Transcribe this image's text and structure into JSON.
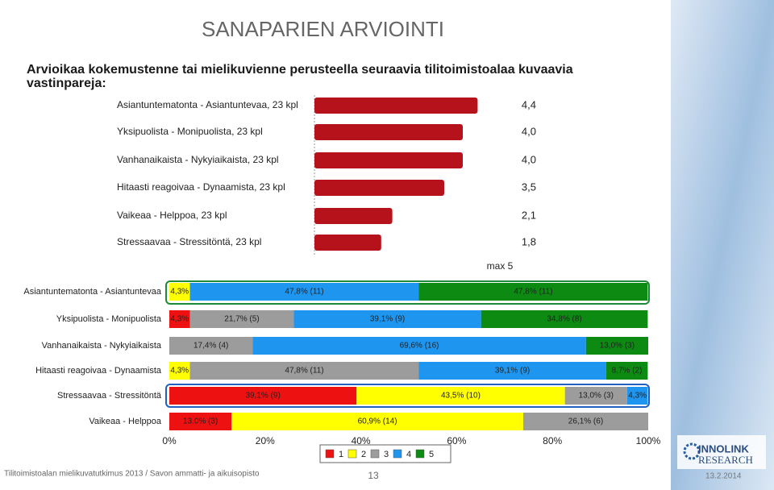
{
  "title": "SANAPARIEN ARVIOINTI",
  "question": "Arvioikaa kokemustenne tai mielikuvienne perusteella seuraavia tilitoimistoalaa kuvaavia vastinpareja:",
  "footer": "Tilitoimistoalan mielikuvatutkimus 2013 / Savon ammatti- ja aikuisopisto",
  "page_number": "13",
  "date": "13.2.2014",
  "logo": {
    "line1": "INNOLINK",
    "line2": "RESEARCH"
  },
  "chart_data": [
    {
      "type": "hbar",
      "categories": [
        "Asiantuntematonta - Asiantuntevaa, 23 kpl",
        "Yksipuolista - Monipuolista, 23 kpl",
        "Vanhanaikaista - Nykyiaikaista, 23 kpl",
        "Hitaasti reagoivaa - Dynaamista, 23 kpl",
        "Vaikeaa - Helppoa, 23 kpl",
        "Stressaavaa - Stressitöntä, 23 kpl"
      ],
      "values": [
        4.4,
        4.0,
        4.0,
        3.5,
        2.1,
        1.8
      ],
      "value_labels": [
        "4,4",
        "4,0",
        "4,0",
        "3,5",
        "2,1",
        "1,8"
      ],
      "color": "#b5121b",
      "xlim": [
        0,
        5
      ],
      "annotation": "max 5"
    },
    {
      "type": "stacked_hbar",
      "categories": [
        "Asiantuntematonta - Asiantuntevaa",
        "Yksipuolista - Monipuolista",
        "Vanhanaikaista - Nykyiaikaista",
        "Hitaasti reagoivaa - Dynaamista",
        "Stressaavaa - Stressitöntä",
        "Vaikeaa - Helppoa"
      ],
      "series": [
        {
          "name": "1",
          "color": "#ee1111",
          "values": [
            null,
            4.3,
            null,
            null,
            39.1,
            13.0
          ],
          "value_labels": [
            null,
            "4,3%",
            null,
            null,
            "39,1% (9)",
            "13,0% (3)"
          ]
        },
        {
          "name": "2",
          "color": "#ffff00",
          "values": [
            4.3,
            null,
            null,
            4.3,
            43.5,
            60.9
          ],
          "value_labels": [
            "4,3%",
            null,
            null,
            "4,3%",
            "43,5% (10)",
            "60,9% (14)"
          ]
        },
        {
          "name": "3",
          "color": "#9c9c9c",
          "values": [
            null,
            21.7,
            17.4,
            47.8,
            13.0,
            26.1
          ],
          "value_labels": [
            null,
            "21,7% (5)",
            "17,4% (4)",
            "47,8% (11)",
            "13,0% (3)",
            "26,1% (6)"
          ]
        },
        {
          "name": "4",
          "color": "#1e96f0",
          "values": [
            47.8,
            39.1,
            69.6,
            39.1,
            4.3,
            null
          ],
          "value_labels": [
            "47,8% (11)",
            "39,1% (9)",
            "69,6% (16)",
            "39,1% (9)",
            "4,3%",
            null
          ]
        },
        {
          "name": "5",
          "color": "#0c8a12",
          "values": [
            47.8,
            34.8,
            13.0,
            8.7,
            null,
            null
          ],
          "value_labels": [
            "47,8% (11)",
            "34,8% (8)",
            "13,0% (3)",
            "8,7% (2)",
            null,
            null
          ]
        }
      ],
      "xlim": [
        0,
        100
      ],
      "xticks": [
        {
          "value": 0,
          "label": "0%"
        },
        {
          "value": 20,
          "label": "20%"
        },
        {
          "value": 40,
          "label": "40%"
        },
        {
          "value": 60,
          "label": "60%"
        },
        {
          "value": 80,
          "label": "80%"
        },
        {
          "value": 100,
          "label": "100%"
        }
      ]
    }
  ]
}
